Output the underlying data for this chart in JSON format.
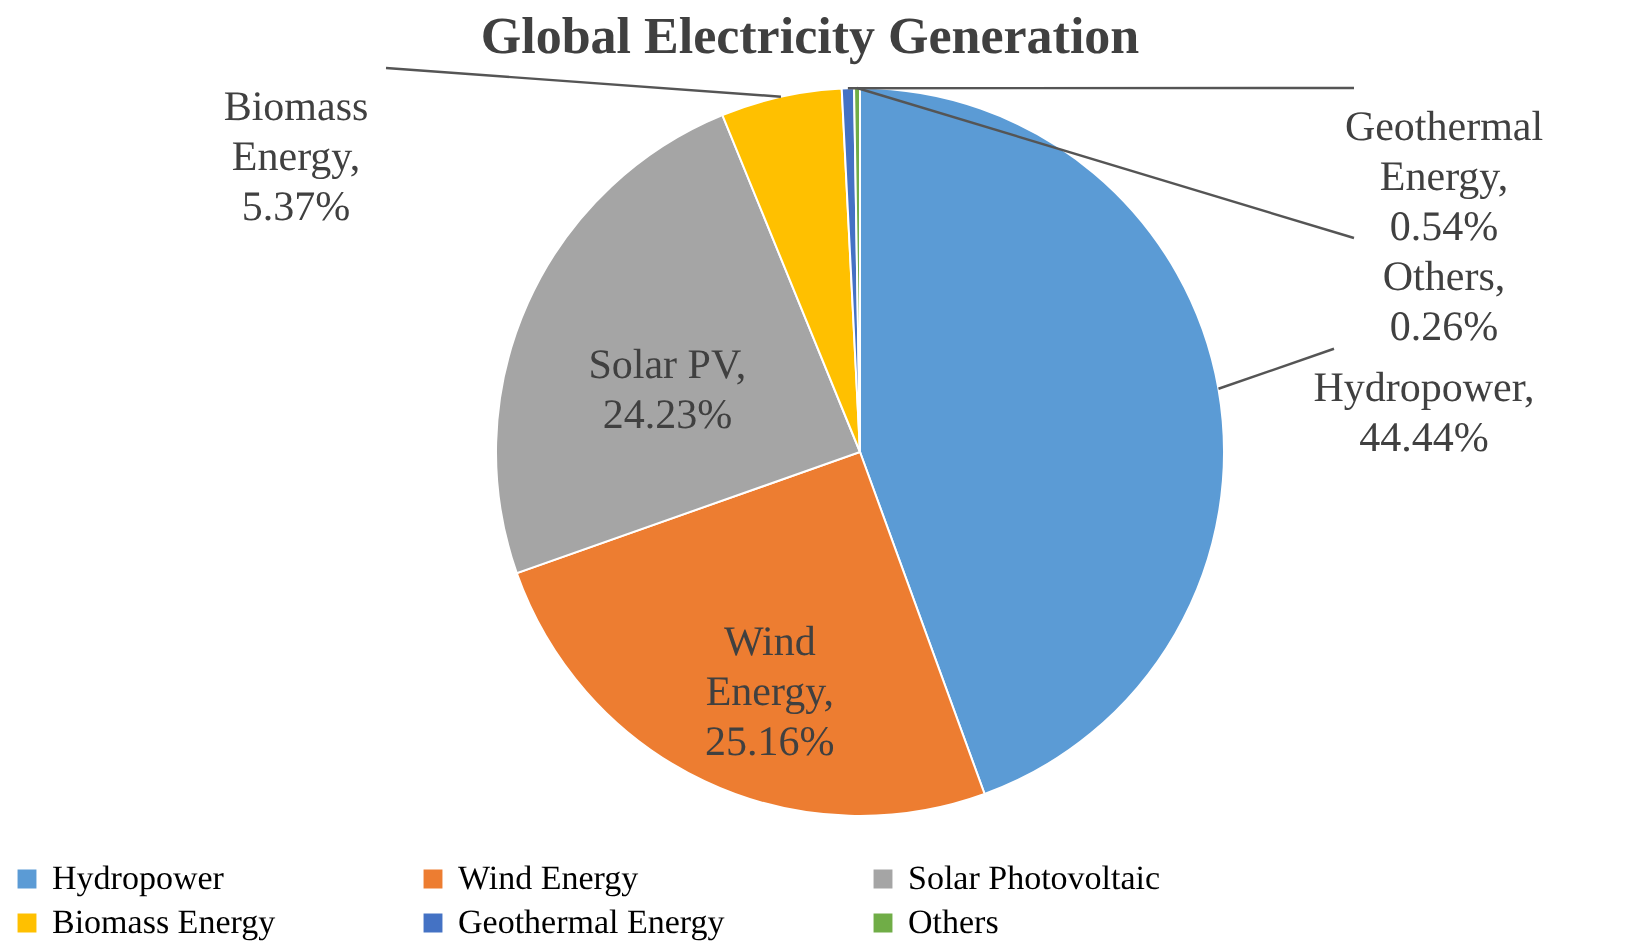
{
  "chart_data": {
    "type": "pie",
    "title": "Global Electricity Generation",
    "categories": [
      "Hydropower",
      "Wind Energy",
      "Solar Photovoltaic",
      "Biomass Energy",
      "Geothermal Energy",
      "Others"
    ],
    "values": [
      44.44,
      25.16,
      24.23,
      5.37,
      0.54,
      0.26
    ],
    "colors": [
      "#5b9bd5",
      "#ed7d31",
      "#a5a5a5",
      "#ffc000",
      "#4472c4",
      "#70ad47"
    ],
    "value_labels": [
      "Hydropower, 44.44%",
      "Wind Energy, 25.16%",
      "Solar PV, 24.23%",
      "Biomass Energy, 5.37%",
      "Geothermal Energy, 0.54%",
      "Others, 0.26%"
    ],
    "legend": "bottom"
  }
}
